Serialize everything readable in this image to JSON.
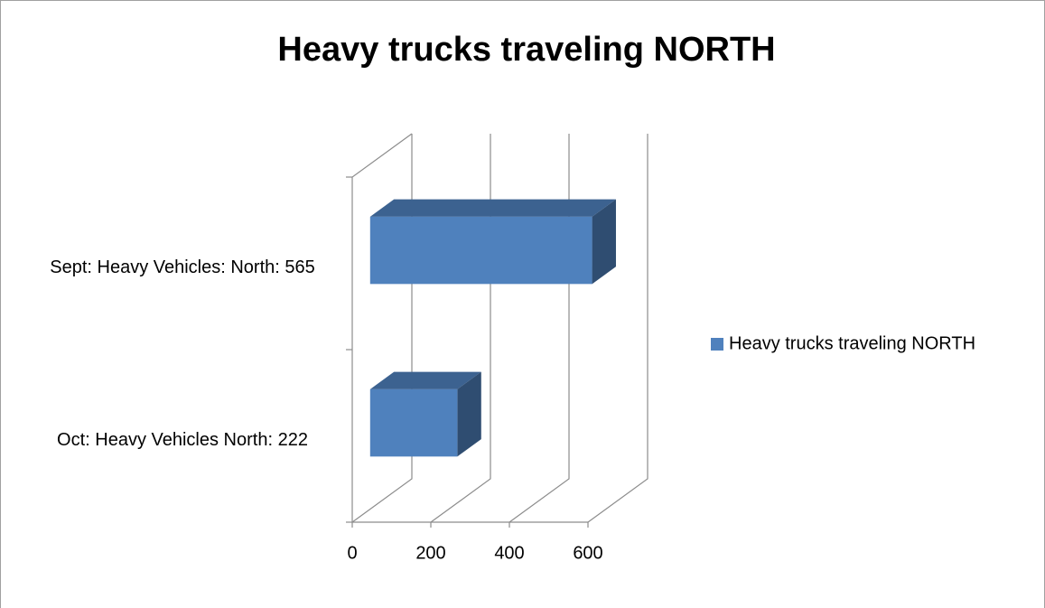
{
  "chart_data": {
    "type": "bar3d_horizontal",
    "title": "Heavy trucks traveling NORTH",
    "categories": [
      "Sept: Heavy Vehicles: North: 565",
      "Oct: Heavy Vehicles North: 222"
    ],
    "series": [
      {
        "name": "Heavy trucks traveling NORTH",
        "color": "#4f81bd",
        "values": [
          565,
          222
        ]
      }
    ],
    "xlim": [
      0,
      600
    ],
    "xticks": [
      0,
      200,
      400,
      600
    ],
    "grid": true,
    "legend": "right"
  }
}
